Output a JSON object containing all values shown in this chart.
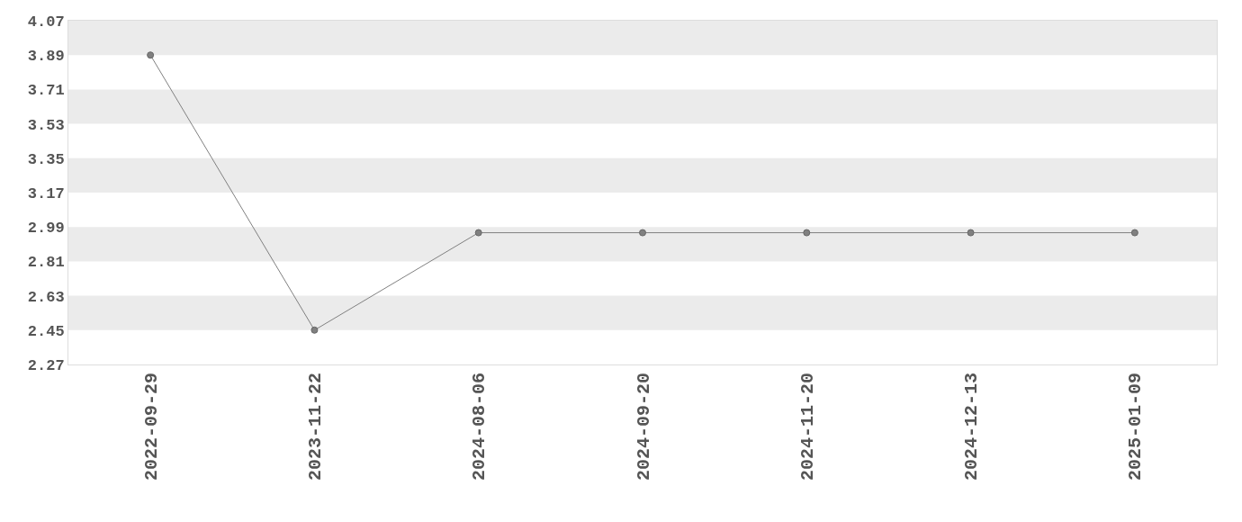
{
  "chart_data": {
    "type": "line",
    "categories": [
      "2022-09-29",
      "2023-11-22",
      "2024-08-06",
      "2024-09-20",
      "2024-11-20",
      "2024-12-13",
      "2025-01-09"
    ],
    "series": [
      {
        "color": "#808080",
        "values": [
          3.89,
          2.45,
          2.96,
          2.96,
          2.96,
          2.96,
          2.96
        ]
      }
    ],
    "ylim": [
      2.27,
      4.07
    ],
    "yticks": [
      2.27,
      2.45,
      2.63,
      2.81,
      2.99,
      3.17,
      3.35,
      3.53,
      3.71,
      3.89,
      4.07
    ],
    "bands": [
      {
        "axis": "y",
        "from": 3.89,
        "to": 4.07,
        "color": "#ebebeb"
      },
      {
        "axis": "y",
        "from": 3.53,
        "to": 3.71,
        "color": "#ebebeb"
      },
      {
        "axis": "y",
        "from": 3.17,
        "to": 3.35,
        "color": "#ebebeb"
      },
      {
        "axis": "y",
        "from": 2.81,
        "to": 2.99,
        "color": "#ebebeb"
      },
      {
        "axis": "y",
        "from": 2.45,
        "to": 2.63,
        "color": "#ebebeb"
      }
    ],
    "marker": "circle",
    "line_style": "solid",
    "legend": false
  }
}
